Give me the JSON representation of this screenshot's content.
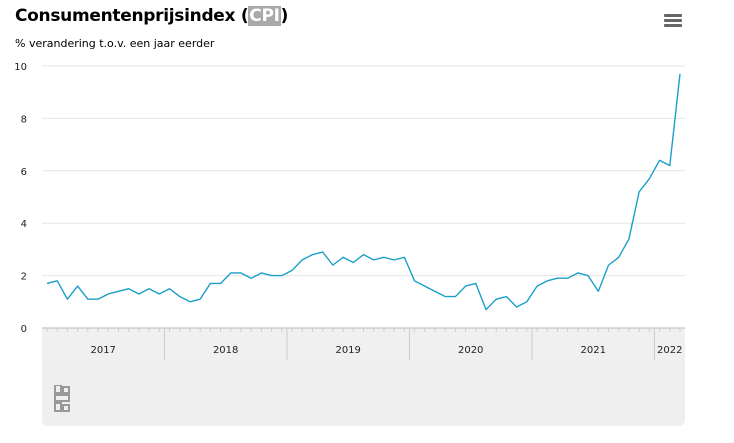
{
  "title": {
    "main": "Consumentenprijsindex (",
    "abbr": "CPI",
    "close": ")"
  },
  "subtitle": "% verandering t.o.v. een jaar eerder",
  "menu_icon": "hamburger-menu-icon",
  "logo_icon": "cbs-logo-icon",
  "colors": {
    "line": "#1aa0c8",
    "grid": "#e6e6e6",
    "band": "#f0f0f0",
    "title_highlight": "#a9a9a9"
  },
  "chart_data": {
    "type": "line",
    "title": "Consumentenprijsindex (CPI)",
    "subtitle": "% verandering t.o.v. een jaar eerder",
    "xlabel": "",
    "ylabel": "",
    "ylim": [
      0,
      10
    ],
    "yticks": [
      0,
      2,
      4,
      6,
      8,
      10
    ],
    "x_start": "2017-01",
    "year_labels": [
      "2017",
      "2018",
      "2019",
      "2020",
      "2021",
      "2022"
    ],
    "grid": true,
    "legend": "none",
    "series": [
      {
        "values": [
          1.7,
          1.8,
          1.1,
          1.6,
          1.1,
          1.1,
          1.3,
          1.4,
          1.5,
          1.3,
          1.5,
          1.3,
          1.5,
          1.2,
          1.0,
          1.1,
          1.7,
          1.7,
          2.1,
          2.1,
          1.9,
          2.1,
          2.0,
          2.0,
          2.2,
          2.6,
          2.8,
          2.9,
          2.4,
          2.7,
          2.5,
          2.8,
          2.6,
          2.7,
          2.6,
          2.7,
          1.8,
          1.6,
          1.4,
          1.2,
          1.2,
          1.6,
          1.7,
          0.7,
          1.1,
          1.2,
          0.8,
          1.0,
          1.6,
          1.8,
          1.9,
          1.9,
          2.1,
          2.0,
          1.4,
          2.4,
          2.7,
          3.4,
          5.2,
          5.7,
          6.4,
          6.2,
          9.7
        ]
      }
    ]
  }
}
